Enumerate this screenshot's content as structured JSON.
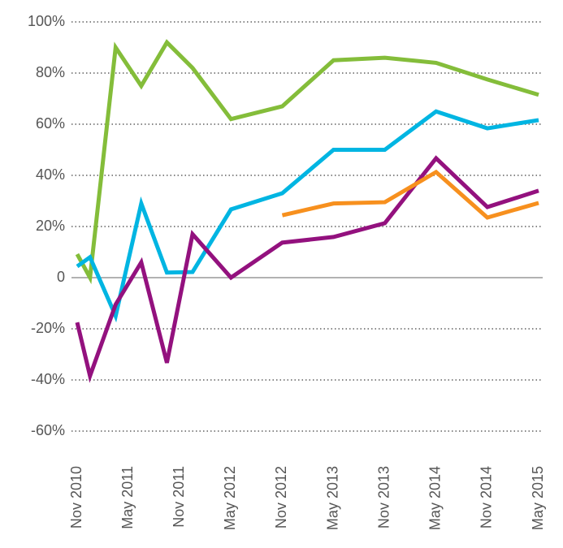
{
  "chart_data": {
    "type": "line",
    "x": [
      0,
      1.5,
      4.5,
      7.5,
      10.5,
      13.5,
      18,
      24,
      30,
      36,
      42,
      48,
      54
    ],
    "xlim": [
      0,
      54
    ],
    "xticks": [
      {
        "value": 0,
        "label": "Nov 2010"
      },
      {
        "value": 6,
        "label": "May 2011"
      },
      {
        "value": 12,
        "label": "Nov 2011"
      },
      {
        "value": 18,
        "label": "May 2012"
      },
      {
        "value": 24,
        "label": "Nov 2012"
      },
      {
        "value": 30,
        "label": "May 2013"
      },
      {
        "value": 36,
        "label": "Nov 2013"
      },
      {
        "value": 42,
        "label": "May 2014"
      },
      {
        "value": 48,
        "label": "Nov 2014"
      },
      {
        "value": 54,
        "label": "May 2015"
      }
    ],
    "ylim": [
      -60,
      100
    ],
    "yticks": [
      {
        "value": 100,
        "label": "100%"
      },
      {
        "value": 80,
        "label": "80%"
      },
      {
        "value": 60,
        "label": "60%"
      },
      {
        "value": 40,
        "label": "40%"
      },
      {
        "value": 20,
        "label": "20%"
      },
      0,
      {
        "value": -20,
        "label": "-20%"
      },
      {
        "value": -40,
        "label": "-40%"
      },
      {
        "value": -60,
        "label": "-60%"
      }
    ],
    "grid": true,
    "series": [
      {
        "color": "#84bd3a",
        "values": [
          9.2,
          0,
          90,
          75,
          92,
          82,
          62,
          67,
          85,
          86,
          84,
          77.5,
          71.5
        ]
      },
      {
        "color": "#00b5e2",
        "values": [
          4.4,
          8,
          -15,
          29,
          2,
          2.2,
          26.7,
          33,
          50,
          50,
          65,
          58.4,
          61.6
        ]
      },
      {
        "color": "#93117e",
        "values": [
          -17.5,
          -38.4,
          -10.5,
          6,
          -33.3,
          17,
          0,
          13.7,
          15.9,
          21.3,
          46.7,
          27.6,
          34
        ]
      },
      {
        "color": "#f7901e",
        "values": [
          null,
          null,
          null,
          null,
          null,
          null,
          null,
          24.4,
          29,
          29.5,
          41.3,
          23.5,
          29.2
        ]
      }
    ]
  }
}
